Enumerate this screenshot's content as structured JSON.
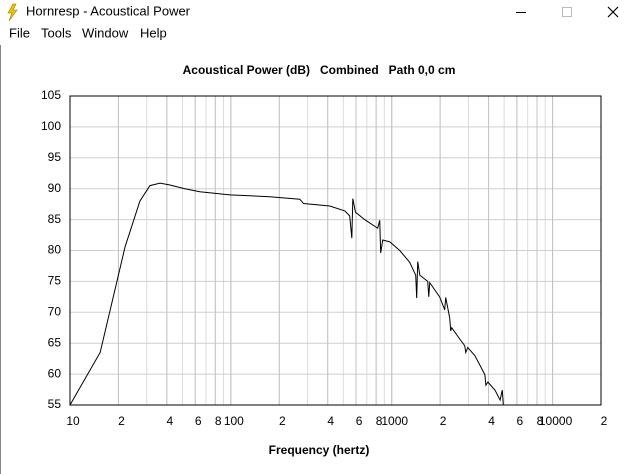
{
  "window": {
    "title": "Hornresp - Acoustical Power"
  },
  "menu": [
    "File",
    "Tools",
    "Window",
    "Help"
  ],
  "chart_data": {
    "type": "line",
    "title": "Acoustical Power (dB)   Combined   Path 0,0 cm",
    "x_label": "Frequency (hertz)",
    "log_x": true,
    "grid": true,
    "color": "#000000",
    "xlim": [
      10,
      20000
    ],
    "ylim": [
      55,
      105
    ],
    "xticks": [
      10,
      {
        "value": 20,
        "label": "2"
      },
      {
        "value": 40,
        "label": "4"
      },
      {
        "value": 60,
        "label": "6"
      },
      {
        "value": 80,
        "label": "8"
      },
      100,
      {
        "value": 200,
        "label": "2"
      },
      {
        "value": 400,
        "label": "4"
      },
      {
        "value": 600,
        "label": "6"
      },
      {
        "value": 800,
        "label": "8"
      },
      1000,
      {
        "value": 2000,
        "label": "2"
      },
      {
        "value": 4000,
        "label": "4"
      },
      {
        "value": 6000,
        "label": "6"
      },
      {
        "value": 8000,
        "label": "8"
      },
      10000,
      {
        "value": 20000,
        "label": "2"
      }
    ],
    "yticks": [
      55,
      60,
      65,
      70,
      75,
      80,
      85,
      90,
      95,
      100,
      105
    ],
    "x": [
      10,
      15.4,
      22,
      27.2,
      31.4,
      36.3,
      41.8,
      51.8,
      64.1,
      98.6,
      174.6,
      268,
      283,
      412,
      511,
      548,
      565,
      573,
      595,
      679,
      818,
      842,
      854,
      879,
      973,
      1122,
      1293,
      1410,
      1430,
      1451,
      1496,
      1675,
      1699,
      1723,
      1985,
      2135,
      2166,
      2293,
      2327,
      2361,
      2644,
      2844,
      2885,
      2970,
      3285,
      3527,
      3794,
      3849,
      3962,
      4386,
      4718,
      4869,
      4941
    ],
    "values": [
      55,
      63.5,
      80.6,
      88.0,
      90.5,
      90.9,
      90.6,
      90.0,
      89.5,
      89.0,
      88.7,
      88.3,
      87.6,
      87.2,
      86.4,
      85.6,
      82.0,
      88.4,
      86.2,
      85.0,
      83.6,
      84.9,
      79.6,
      81.7,
      81.4,
      80.0,
      78.1,
      76.0,
      72.3,
      78.2,
      76.0,
      75.0,
      72.5,
      74.8,
      72.5,
      70.4,
      72.4,
      69.1,
      67.0,
      67.5,
      65.7,
      64.6,
      63.5,
      64.3,
      63.0,
      61.5,
      59.9,
      58.2,
      58.7,
      57.4,
      55.8,
      57.4,
      55.0
    ]
  }
}
